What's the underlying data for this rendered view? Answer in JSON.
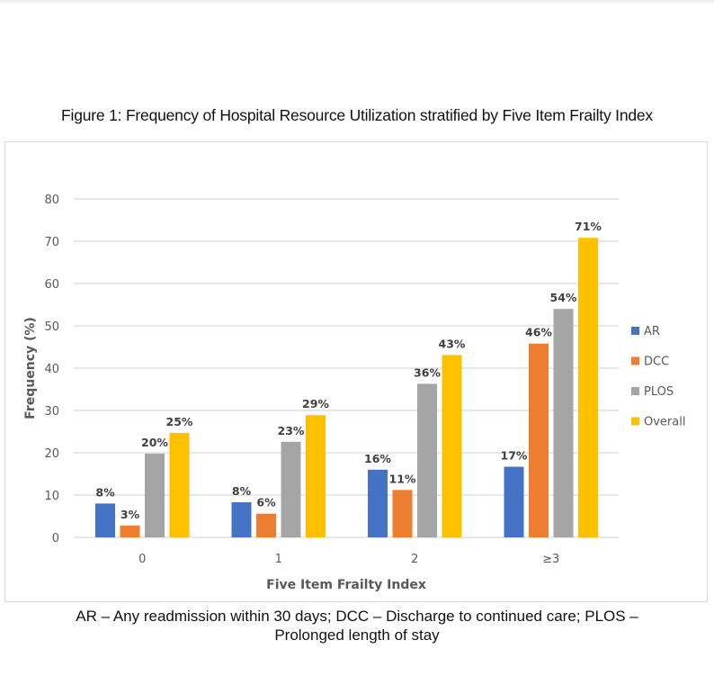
{
  "figure_title": "Figure 1: Frequency of Hospital Resource Utilization stratified by Five Item Frailty Index",
  "caption_line1": "AR – Any readmission within 30 days; DCC – Discharge to continued care; PLOS –",
  "caption_line2": "Prolonged length of stay",
  "chart_data": {
    "type": "bar",
    "title": "Figure 1: Frequency of Hospital Resource Utilization stratified by Five Item Frailty Index",
    "xlabel": "Five Item Frailty Index",
    "ylabel": "Frequency (%)",
    "categories": [
      "0",
      "1",
      "2",
      "≥3"
    ],
    "ylim": [
      0,
      80
    ],
    "yticks": [
      0,
      10,
      20,
      30,
      40,
      50,
      60,
      70,
      80
    ],
    "grid": true,
    "legend_position": "right",
    "series": [
      {
        "name": "AR",
        "color": "#4472c4",
        "values": [
          8,
          8.3,
          16,
          16.7
        ],
        "labels": [
          "8%",
          "8%",
          "16%",
          "17%"
        ]
      },
      {
        "name": "DCC",
        "color": "#ed7d31",
        "values": [
          2.8,
          5.6,
          11.2,
          45.8
        ],
        "labels": [
          "3%",
          "6%",
          "11%",
          "46%"
        ]
      },
      {
        "name": "PLOS",
        "color": "#a5a5a5",
        "values": [
          19.8,
          22.6,
          36.3,
          54
        ],
        "labels": [
          "20%",
          "23%",
          "36%",
          "54%"
        ]
      },
      {
        "name": "Overall",
        "color": "#ffc000",
        "values": [
          24.7,
          28.9,
          43.1,
          70.8
        ],
        "labels": [
          "25%",
          "29%",
          "43%",
          "71%"
        ]
      }
    ]
  }
}
